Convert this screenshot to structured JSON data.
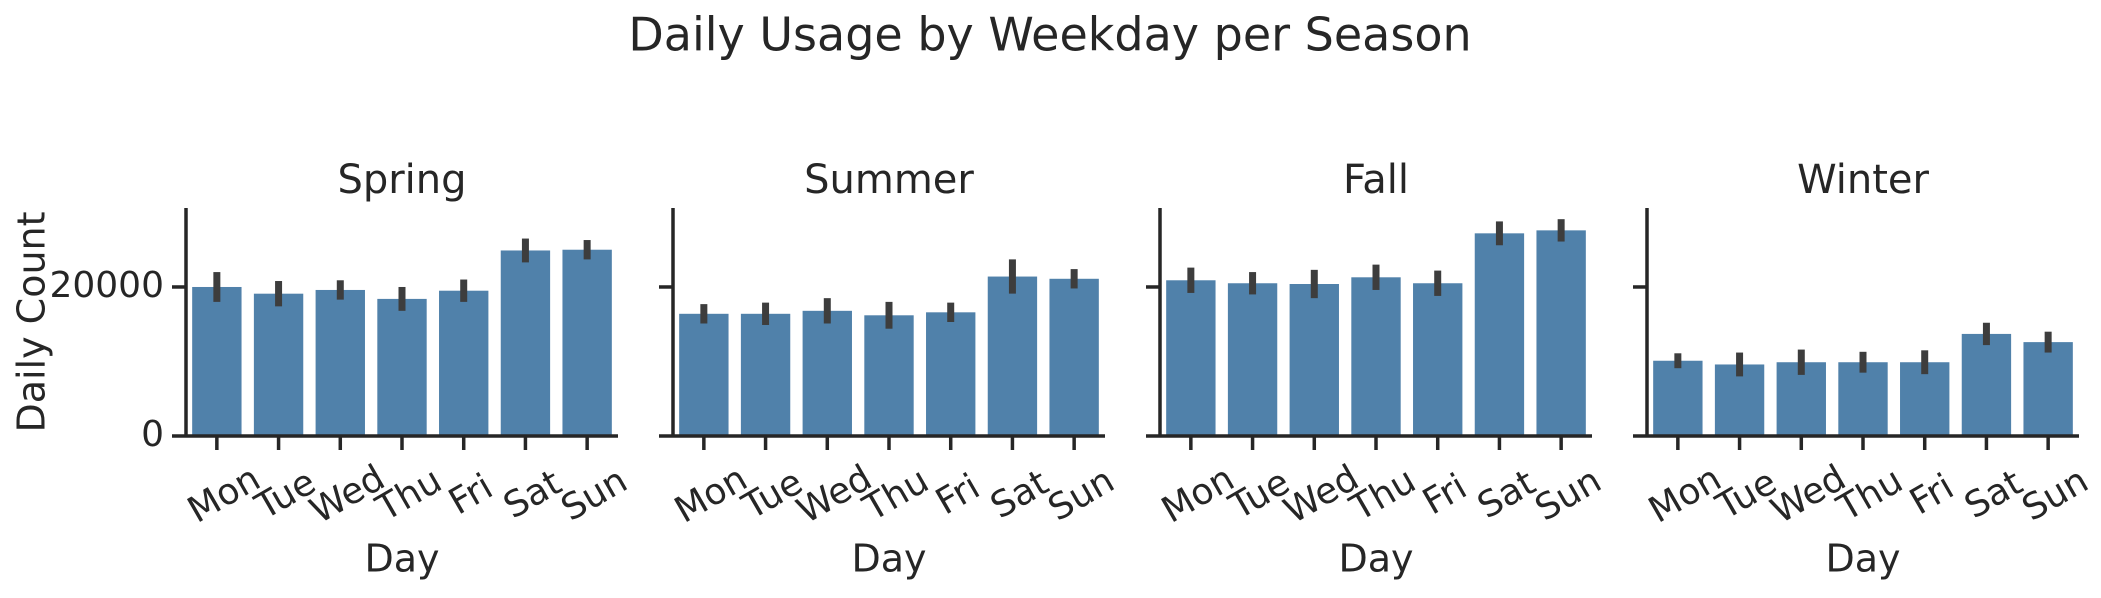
{
  "title": "Daily Usage by Weekday per Season",
  "chart_data": [
    {
      "type": "bar",
      "title": "Spring",
      "x_label": "Day",
      "y_label": "Daily Count",
      "categories": [
        "Mon",
        "Tue",
        "Wed",
        "Thu",
        "Fri",
        "Sat",
        "Sun"
      ],
      "values": [
        20000,
        19100,
        19600,
        18400,
        19500,
        24900,
        25000
      ],
      "errors": [
        2000,
        1700,
        1300,
        1600,
        1500,
        1600,
        1300
      ],
      "color": "#5081aa",
      "ylim": [
        0,
        30600
      ],
      "yticks": [
        0,
        20000
      ]
    },
    {
      "type": "bar",
      "title": "Summer",
      "x_label": "Day",
      "categories": [
        "Mon",
        "Tue",
        "Wed",
        "Thu",
        "Fri",
        "Sat",
        "Sun"
      ],
      "values": [
        16400,
        16400,
        16800,
        16200,
        16600,
        21400,
        21100
      ],
      "errors": [
        1300,
        1500,
        1700,
        1800,
        1300,
        2300,
        1300
      ],
      "color": "#5081aa",
      "ylim": [
        0,
        30600
      ],
      "yticks": [
        0,
        20000
      ]
    },
    {
      "type": "bar",
      "title": "Fall",
      "x_label": "Day",
      "categories": [
        "Mon",
        "Tue",
        "Wed",
        "Thu",
        "Fri",
        "Sat",
        "Sun"
      ],
      "values": [
        20900,
        20500,
        20400,
        21300,
        20500,
        27200,
        27600
      ],
      "errors": [
        1700,
        1500,
        1900,
        1700,
        1700,
        1600,
        1500
      ],
      "color": "#5081aa",
      "ylim": [
        0,
        30600
      ],
      "yticks": [
        0,
        20000
      ]
    },
    {
      "type": "bar",
      "title": "Winter",
      "x_label": "Day",
      "categories": [
        "Mon",
        "Tue",
        "Wed",
        "Thu",
        "Fri",
        "Sat",
        "Sun"
      ],
      "values": [
        10100,
        9600,
        9900,
        9900,
        9900,
        13700,
        12600
      ],
      "errors": [
        1000,
        1600,
        1700,
        1400,
        1600,
        1500,
        1400
      ],
      "color": "#5081aa",
      "ylim": [
        0,
        30600
      ],
      "yticks": [
        0,
        20000
      ]
    }
  ]
}
